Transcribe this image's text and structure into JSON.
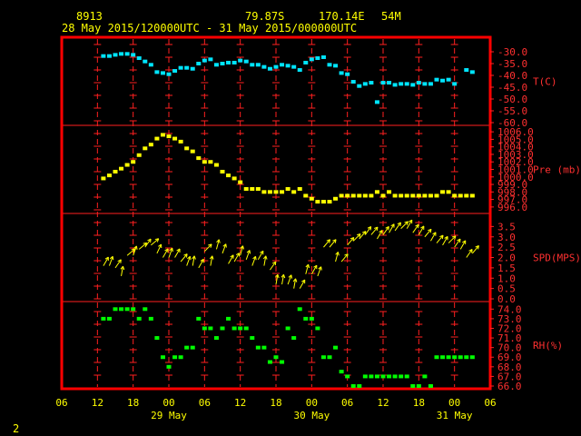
{
  "header": {
    "station": "8913",
    "lat": "79.87S",
    "lon": "170.14E",
    "elev": "54M",
    "range": "28 May 2015/120000UTC - 31 May 2015/000000UTC"
  },
  "footer": {
    "page": "2"
  },
  "chart_data": {
    "type": "scatter",
    "x_axis": {
      "unit": "hours since 28 May 2015 00UTC",
      "range": [
        6,
        78
      ],
      "tick_labels": [
        "06",
        "12",
        "18",
        "00",
        "06",
        "12",
        "18",
        "00",
        "06",
        "12",
        "18",
        "00",
        "06"
      ],
      "day_labels": [
        "29 May",
        "30 May",
        "31 May"
      ]
    },
    "panels": [
      {
        "name": "T(C)",
        "color": "#00e5ff",
        "ylim": [
          -60,
          -25
        ],
        "tick_labels": [
          "-30.0",
          "-35.0",
          "-40.0",
          "-45.0",
          "-50.0",
          "-55.0",
          "-60.0"
        ],
        "x": [
          13,
          14,
          15,
          16,
          17,
          18,
          19,
          20,
          21,
          22,
          23,
          24,
          25,
          26,
          27,
          28,
          29,
          30,
          31,
          32,
          33,
          34,
          35,
          36,
          37,
          38,
          39,
          40,
          41,
          42,
          43,
          44,
          45,
          46,
          47,
          48,
          49,
          50,
          51,
          52,
          53,
          54,
          55,
          56,
          57,
          58,
          59,
          60,
          61,
          62,
          63,
          64,
          65,
          66,
          67,
          68,
          69,
          70,
          71,
          72,
          74,
          75
        ],
        "y": [
          -31.8,
          -31.8,
          -31.3,
          -30.9,
          -30.9,
          -31.3,
          -32.7,
          -34.1,
          -35.5,
          -38.6,
          -39,
          -39.5,
          -38.1,
          -36.8,
          -36.8,
          -37.2,
          -35.0,
          -33.7,
          -33.2,
          -35.5,
          -35.0,
          -34.6,
          -34.6,
          -33.7,
          -34.1,
          -35.5,
          -35.5,
          -36.4,
          -37.2,
          -36.4,
          -35.5,
          -35.9,
          -36.4,
          -37.7,
          -34.6,
          -33.2,
          -32.7,
          -32.3,
          -35.5,
          -35.9,
          -39.0,
          -39.5,
          -42.7,
          -44.5,
          -43.6,
          -43.1,
          -51.3,
          -43.1,
          -43.1,
          -44.0,
          -43.6,
          -43.6,
          -44.0,
          -43.1,
          -43.6,
          -43.6,
          -41.8,
          -42.2,
          -41.8,
          -43.6,
          -37.7,
          -38.6
        ]
      },
      {
        "name": "Pre (mb)",
        "color": "#ffff00",
        "ylim": [
          995.5,
          1006.5
        ],
        "tick_labels": [
          "1006.0",
          "1005.0",
          "1004.0",
          "1003.0",
          "1002.0",
          "1001.0",
          "1000.0",
          "999.0",
          "998.0",
          "997.0",
          "996.0"
        ],
        "x": [
          13,
          14,
          15,
          16,
          17,
          18,
          19,
          20,
          21,
          22,
          23,
          24,
          25,
          26,
          27,
          28,
          29,
          30,
          31,
          32,
          33,
          34,
          35,
          36,
          37,
          38,
          39,
          40,
          41,
          42,
          43,
          44,
          45,
          46,
          47,
          48,
          49,
          50,
          51,
          52,
          53,
          54,
          55,
          56,
          57,
          58,
          59,
          60,
          61,
          62,
          63,
          64,
          65,
          66,
          67,
          68,
          69,
          70,
          71,
          72,
          73,
          74,
          75
        ],
        "y": [
          999.8,
          1000.2,
          1000.7,
          1001.1,
          1001.6,
          1002.0,
          1002.9,
          1003.8,
          1004.3,
          1005.1,
          1005.6,
          1005.4,
          1005.1,
          1004.7,
          1003.8,
          1003.4,
          1002.5,
          1002.0,
          1002.0,
          1001.6,
          1000.7,
          1000.2,
          999.8,
          999.3,
          998.4,
          998.4,
          998.4,
          998.0,
          998.0,
          998.0,
          998.0,
          998.4,
          998.0,
          998.4,
          997.5,
          997.1,
          996.7,
          996.7,
          996.7,
          997.1,
          997.5,
          997.5,
          997.5,
          997.5,
          997.5,
          997.5,
          998.0,
          997.5,
          998.0,
          997.5,
          997.5,
          997.5,
          997.5,
          997.5,
          997.5,
          997.5,
          997.5,
          998.0,
          998.0,
          997.5,
          997.5,
          997.5,
          997.5
        ]
      },
      {
        "name": "SPD(MPS)",
        "color": "#ffff00",
        "ylim": [
          0,
          4
        ],
        "tick_labels": [
          "3.5",
          "3.0",
          "2.5",
          "2.0",
          "1.5",
          "1.0",
          "0.5",
          "0.0"
        ],
        "x": [
          13,
          14,
          15,
          16,
          17,
          18,
          19,
          20,
          21,
          22,
          23,
          24,
          25,
          26,
          27,
          28,
          29,
          30,
          31,
          32,
          33,
          34,
          35,
          36,
          37,
          38,
          39,
          40,
          41,
          42,
          43,
          44,
          45,
          46,
          47,
          48,
          49,
          50,
          51,
          52,
          53,
          54,
          55,
          56,
          57,
          58,
          59,
          60,
          61,
          62,
          63,
          64,
          65,
          66,
          67,
          68,
          69,
          70,
          71,
          72,
          73,
          74,
          75
        ],
        "y": [
          1.6,
          1.6,
          1.5,
          1.1,
          2.1,
          2.1,
          2.4,
          2.5,
          2.6,
          2.2,
          2.0,
          2.0,
          2.0,
          1.8,
          1.6,
          1.6,
          1.5,
          2.3,
          1.6,
          2.4,
          2.2,
          1.7,
          1.8,
          2.1,
          1.9,
          1.6,
          1.9,
          1.6,
          1.4,
          0.7,
          0.7,
          0.7,
          0.5,
          0.5,
          1.2,
          1.2,
          1.1,
          2.5,
          2.5,
          1.8,
          1.8,
          2.6,
          2.8,
          2.9,
          3.1,
          3.1,
          2.9,
          3.1,
          3.2,
          3.3,
          3.4,
          3.4,
          3.2,
          3.1,
          3.0,
          2.8,
          2.7,
          2.6,
          2.7,
          2.5,
          2.4,
          2.0,
          2.2
        ],
        "dir_deg": [
          60,
          70,
          55,
          80,
          40,
          70,
          40,
          55,
          40,
          65,
          60,
          70,
          60,
          50,
          70,
          80,
          60,
          45,
          80,
          75,
          70,
          60,
          60,
          75,
          70,
          70,
          60,
          80,
          55,
          80,
          80,
          70,
          80,
          60,
          75,
          60,
          70,
          50,
          50,
          75,
          50,
          50,
          45,
          50,
          55,
          50,
          60,
          55,
          60,
          55,
          45,
          60,
          55,
          60,
          50,
          60,
          50,
          60,
          45,
          55,
          60,
          55,
          50
        ]
      },
      {
        "name": "RH(%)",
        "color": "#00ff00",
        "ylim": [
          66,
          74.5
        ],
        "tick_labels": [
          "74.0",
          "73.0",
          "72.0",
          "71.0",
          "70.0",
          "69.0",
          "68.0",
          "67.0",
          "66.0"
        ],
        "x": [
          13,
          14,
          15,
          16,
          17,
          18,
          19,
          20,
          21,
          22,
          23,
          24,
          25,
          26,
          27,
          28,
          29,
          30,
          31,
          32,
          33,
          34,
          35,
          36,
          37,
          38,
          39,
          40,
          41,
          42,
          43,
          44,
          45,
          46,
          47,
          48,
          49,
          50,
          51,
          52,
          53,
          54,
          55,
          56,
          57,
          58,
          59,
          60,
          61,
          62,
          63,
          64,
          65,
          66,
          67,
          68,
          69,
          70,
          71,
          72,
          73,
          74,
          75
        ],
        "y": [
          73,
          73,
          74,
          74,
          74,
          74,
          73,
          74,
          73,
          71,
          69,
          68,
          69,
          69,
          70,
          70,
          73,
          72,
          72,
          71,
          72,
          73,
          72,
          72,
          72,
          71,
          70,
          70,
          68.5,
          69,
          68.5,
          72,
          71,
          74,
          73,
          73,
          72,
          69,
          69,
          70,
          67.5,
          67,
          66,
          66,
          67,
          67,
          67,
          67,
          67,
          67,
          67,
          67,
          66,
          66,
          67,
          66,
          69,
          69,
          69,
          69,
          69,
          69,
          69
        ]
      }
    ]
  }
}
